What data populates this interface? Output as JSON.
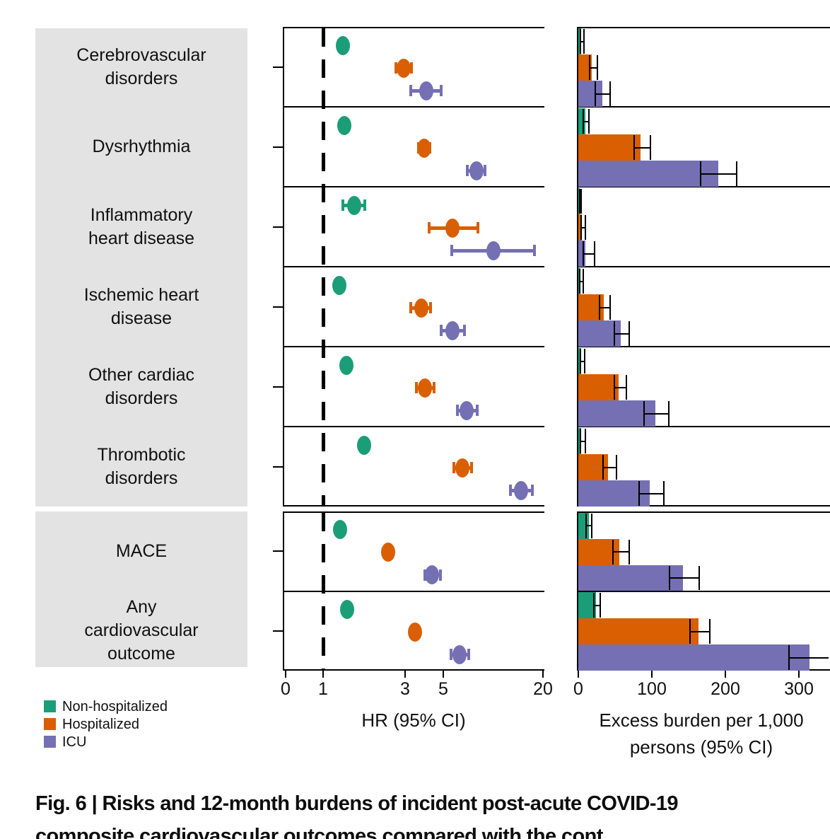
{
  "figure": {
    "caption_line1": "Fig. 6 | Risks and 12-month burdens of incident post-acute COVID-19",
    "caption_line2": "composite cardiovascular outcomes compared with the cont",
    "label_block_color": "#e3e3e3"
  },
  "legend": {
    "items": [
      {
        "label": "Non-hospitalized",
        "color": "#1b9e77"
      },
      {
        "label": "Hospitalized",
        "color": "#d95f02"
      },
      {
        "label": "ICU",
        "color": "#7570b3"
      }
    ]
  },
  "axis": {
    "hr_title": "HR (95% CI)",
    "burden_title_line1": "Excess burden per 1,000",
    "burden_title_line2": "persons (95% CI)"
  },
  "chart_data": [
    {
      "type": "scatter",
      "variant": "forest-plot",
      "xlabel": "HR (95% CI)",
      "x_scale": "log",
      "x_ticks": [
        0,
        1,
        3,
        5,
        20
      ],
      "reference_line_x": 1,
      "legend_position": "bottom-left",
      "categories": [
        [
          "Cerebrovascular",
          "disorders"
        ],
        [
          "Dysrhythmia"
        ],
        [
          "Inflammatory",
          "heart disease"
        ],
        [
          "Ischemic heart",
          "disease"
        ],
        [
          "Other cardiac",
          "disorders"
        ],
        [
          "Thrombotic",
          "disorders"
        ],
        [
          "MACE"
        ],
        [
          "Any",
          "cardiovascular",
          "outcome"
        ]
      ],
      "row_groups": [
        [
          0,
          1,
          2,
          3,
          4,
          5
        ],
        [
          6,
          7
        ]
      ],
      "series": [
        {
          "name": "Non-hospitalized",
          "color": "#1b9e77",
          "hr": [
            1.3,
            1.33,
            1.52,
            1.24,
            1.37,
            1.73,
            1.26,
            1.38
          ],
          "ci_low": [
            1.22,
            1.28,
            1.28,
            1.17,
            1.31,
            1.6,
            1.2,
            1.33
          ],
          "ci_high": [
            1.38,
            1.38,
            1.78,
            1.32,
            1.43,
            1.87,
            1.32,
            1.43
          ]
        },
        {
          "name": "Hospitalized",
          "color": "#d95f02",
          "hr": [
            2.94,
            3.87,
            5.66,
            3.73,
            3.91,
            6.45,
            2.39,
            3.42
          ],
          "ci_low": [
            2.6,
            3.52,
            4.06,
            3.18,
            3.43,
            5.66,
            2.22,
            3.2
          ],
          "ci_high": [
            3.33,
            4.26,
            8.1,
            4.3,
            4.5,
            7.45,
            2.58,
            3.66
          ]
        },
        {
          "name": "ICU",
          "color": "#7570b3",
          "hr": [
            4.0,
            7.8,
            9.8,
            5.66,
            6.84,
            14.2,
            4.3,
            6.22
          ],
          "ci_low": [
            3.18,
            6.8,
            5.5,
            4.77,
            5.93,
            12.1,
            3.84,
            5.45
          ],
          "ci_high": [
            4.95,
            8.9,
            17.3,
            6.77,
            8.0,
            16.8,
            4.91,
            7.16
          ]
        }
      ]
    },
    {
      "type": "bar",
      "variant": "horizontal-bar",
      "xlabel": "Excess burden per 1,000 persons (95% CI)",
      "x_scale": "linear",
      "x_ticks": [
        0,
        100,
        200,
        300
      ],
      "xlim": [
        0,
        342
      ],
      "categories": [
        [
          "Cerebrovascular",
          "disorders"
        ],
        [
          "Dysrhythmia"
        ],
        [
          "Inflammatory",
          "heart disease"
        ],
        [
          "Ischemic heart",
          "disease"
        ],
        [
          "Other cardiac",
          "disorders"
        ],
        [
          "Thrombotic",
          "disorders"
        ],
        [
          "MACE"
        ],
        [
          "Any",
          "cardiovascular",
          "outcome"
        ]
      ],
      "series": [
        {
          "name": "Non-hospitalized",
          "color": "#1b9e77",
          "values": [
            4,
            10,
            1,
            3,
            4,
            4,
            14,
            24
          ],
          "ci_low": [
            2,
            6,
            0.5,
            1,
            2,
            2,
            10,
            20
          ],
          "ci_high": [
            7,
            13,
            3,
            6,
            8,
            9,
            17,
            29
          ]
        },
        {
          "name": "Hospitalized",
          "color": "#d95f02",
          "values": [
            18,
            85,
            5,
            35,
            55,
            40,
            56,
            163
          ],
          "ci_low": [
            14,
            75,
            3,
            28,
            48,
            33,
            46,
            151
          ],
          "ci_high": [
            25,
            97,
            9,
            42,
            64,
            51,
            68,
            178
          ]
        },
        {
          "name": "ICU",
          "color": "#7570b3",
          "values": [
            33,
            190,
            10,
            58,
            105,
            97,
            142,
            314
          ],
          "ci_low": [
            22,
            165,
            6,
            48,
            88,
            82,
            123,
            286
          ],
          "ci_high": [
            42,
            214,
            21,
            68,
            122,
            115,
            163,
            340
          ]
        }
      ]
    }
  ]
}
